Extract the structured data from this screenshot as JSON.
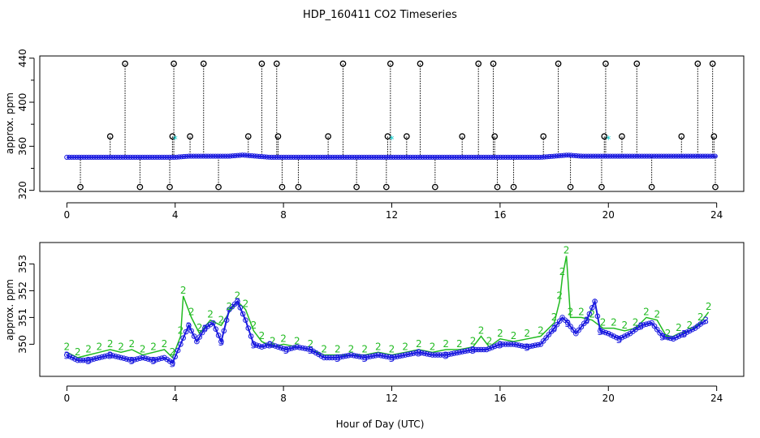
{
  "chart_data": [
    {
      "type": "scatter",
      "panel": "top",
      "title": "HDP_160411  CO2 Timeseries",
      "xlabel": "",
      "ylabel": "approx. ppm",
      "xlim": [
        -1,
        25
      ],
      "ylim": [
        319,
        442
      ],
      "xticks": [
        0,
        4,
        8,
        12,
        16,
        20,
        24
      ],
      "yticks": [
        320,
        360,
        400,
        440
      ],
      "colors": {
        "baseline": "#1a1adf",
        "alt": "#00cccc",
        "flag": "#000000",
        "green": "#22bb22"
      },
      "baseline_value": 350,
      "series": [
        {
          "name": "baseline",
          "x": [
            0.0,
            0.5,
            1.0,
            1.5,
            2.0,
            2.5,
            3.0,
            3.5,
            4.0,
            4.5,
            5.0,
            5.5,
            6.0,
            6.5,
            7.0,
            7.5,
            8.0,
            8.5,
            9.0,
            9.5,
            10.0,
            10.5,
            11.0,
            11.5,
            12.0,
            12.5,
            13.0,
            13.5,
            14.0,
            14.5,
            15.0,
            15.5,
            16.0,
            16.5,
            17.0,
            17.5,
            18.0,
            18.5,
            19.0,
            19.5,
            20.0,
            20.5,
            21.0,
            21.5,
            22.0,
            22.5,
            23.0,
            23.5,
            24.0
          ],
          "y": [
            350,
            350,
            350,
            350,
            350,
            350,
            350,
            350,
            350,
            351,
            351,
            351,
            351,
            352,
            351,
            350,
            350,
            350,
            350,
            350,
            350,
            350,
            350,
            350,
            350,
            350,
            350,
            350,
            350,
            350,
            350,
            350,
            350,
            350,
            350,
            350,
            351,
            352,
            351,
            351,
            351,
            351,
            351,
            351,
            351,
            351,
            351,
            351,
            351
          ]
        },
        {
          "name": "flag-high",
          "x": [
            2.15,
            3.95,
            5.05,
            7.2,
            7.75,
            10.2,
            11.95,
            13.05,
            15.2,
            15.75,
            18.15,
            19.9,
            21.05,
            23.3,
            23.85
          ],
          "y": [
            435,
            435,
            435,
            435,
            435,
            435,
            435,
            435,
            435,
            435,
            435,
            435,
            435,
            435,
            435
          ]
        },
        {
          "name": "flag-mid",
          "x": [
            1.6,
            3.9,
            4.55,
            6.7,
            7.8,
            9.65,
            11.85,
            12.55,
            14.6,
            15.8,
            17.6,
            19.85,
            20.5,
            22.7,
            23.9
          ],
          "y": [
            369,
            369,
            369,
            369,
            369,
            369,
            369,
            369,
            369,
            369,
            369,
            369,
            369,
            369,
            369
          ]
        },
        {
          "name": "flag-low",
          "x": [
            0.5,
            2.7,
            3.8,
            5.6,
            7.95,
            8.55,
            10.7,
            11.8,
            13.6,
            15.9,
            16.5,
            18.6,
            19.75,
            21.6,
            23.95
          ],
          "y": [
            323,
            323,
            323,
            323,
            323,
            323,
            323,
            323,
            323,
            323,
            323,
            323,
            323,
            323,
            323
          ]
        },
        {
          "name": "cyan",
          "x": [
            4.0,
            12.0,
            20.0
          ],
          "y": [
            366,
            366,
            366
          ]
        }
      ]
    },
    {
      "type": "line",
      "panel": "bottom",
      "title": "",
      "xlabel": "Hour of Day (UTC)",
      "ylabel": "approx. ppm",
      "xlim": [
        -1,
        25
      ],
      "ylim": [
        348.8,
        353.8
      ],
      "xticks": [
        0,
        4,
        8,
        12,
        16,
        20,
        24
      ],
      "yticks": [
        350,
        351,
        352,
        353
      ],
      "colors": {
        "series3": "#1a1adf",
        "series2": "#22bb22"
      },
      "series": [
        {
          "name": "3",
          "x": [
            0.0,
            0.4,
            0.8,
            1.2,
            1.6,
            2.0,
            2.4,
            2.8,
            3.2,
            3.6,
            3.9,
            4.2,
            4.5,
            4.8,
            5.1,
            5.4,
            5.7,
            6.0,
            6.3,
            6.6,
            6.9,
            7.2,
            7.5,
            7.8,
            8.1,
            8.5,
            9.0,
            9.5,
            10.0,
            10.5,
            11.0,
            11.5,
            12.0,
            12.5,
            13.0,
            13.5,
            14.0,
            14.5,
            15.0,
            15.5,
            16.0,
            16.5,
            17.0,
            17.5,
            18.0,
            18.3,
            18.5,
            18.8,
            19.2,
            19.5,
            19.7,
            20.0,
            20.4,
            20.8,
            21.2,
            21.6,
            22.0,
            22.4,
            22.8,
            23.2,
            23.6
          ],
          "y": [
            349.6,
            349.4,
            349.4,
            349.5,
            349.6,
            349.5,
            349.4,
            349.5,
            349.4,
            349.5,
            349.3,
            350.0,
            350.7,
            350.1,
            350.6,
            350.8,
            350.1,
            351.3,
            351.6,
            350.9,
            350.0,
            349.9,
            350.0,
            349.9,
            349.8,
            349.9,
            349.8,
            349.5,
            349.5,
            349.6,
            349.5,
            349.6,
            349.5,
            349.6,
            349.7,
            349.6,
            349.6,
            349.7,
            349.8,
            349.8,
            350.0,
            350.0,
            349.9,
            350.0,
            350.6,
            351.0,
            350.8,
            350.4,
            350.9,
            351.6,
            350.5,
            350.4,
            350.2,
            350.4,
            350.7,
            350.8,
            350.3,
            350.2,
            350.4,
            350.6,
            350.9
          ]
        },
        {
          "name": "2",
          "x": [
            0.0,
            0.4,
            0.8,
            1.2,
            1.6,
            2.0,
            2.4,
            2.8,
            3.2,
            3.6,
            3.9,
            4.2,
            4.3,
            4.6,
            4.9,
            5.3,
            5.7,
            6.0,
            6.3,
            6.6,
            6.9,
            7.2,
            7.6,
            8.0,
            8.5,
            9.0,
            9.5,
            10.0,
            10.5,
            11.0,
            11.5,
            12.0,
            12.5,
            13.0,
            13.5,
            14.0,
            14.5,
            15.0,
            15.3,
            15.6,
            16.0,
            16.5,
            17.0,
            17.5,
            18.0,
            18.2,
            18.3,
            18.45,
            18.6,
            19.0,
            19.4,
            19.8,
            20.2,
            20.6,
            21.0,
            21.4,
            21.8,
            22.2,
            22.6,
            23.0,
            23.4,
            23.7
          ],
          "y": [
            349.7,
            349.5,
            349.6,
            349.7,
            349.8,
            349.7,
            349.8,
            349.6,
            349.7,
            349.8,
            349.5,
            350.3,
            351.8,
            351.0,
            350.4,
            350.9,
            350.7,
            351.2,
            351.6,
            351.3,
            350.5,
            350.1,
            349.9,
            350.0,
            349.9,
            349.8,
            349.6,
            349.6,
            349.6,
            349.6,
            349.7,
            349.6,
            349.7,
            349.8,
            349.7,
            349.8,
            349.8,
            349.9,
            350.3,
            349.9,
            350.2,
            350.1,
            350.2,
            350.3,
            350.8,
            351.6,
            352.5,
            353.3,
            351.0,
            351.0,
            350.9,
            350.6,
            350.6,
            350.5,
            350.6,
            351.0,
            350.9,
            350.2,
            350.4,
            350.5,
            350.8,
            351.2
          ]
        }
      ]
    }
  ]
}
